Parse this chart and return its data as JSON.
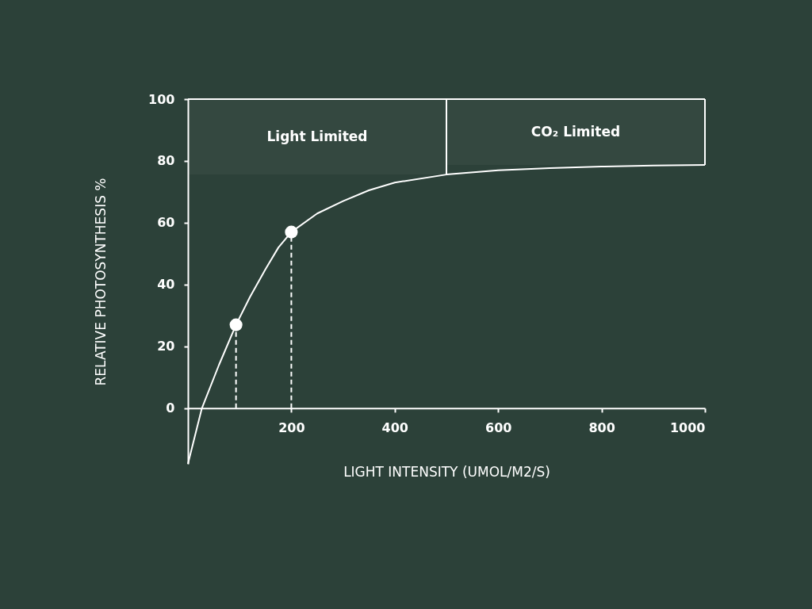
{
  "chart_data": {
    "type": "line",
    "xlabel": "LIGHT INTENSITY (UMOL/M2/S)",
    "ylabel": "RELATIVE PHOTOSYNTHESIS %",
    "xlim": [
      0,
      1000
    ],
    "ylim": [
      -18,
      100
    ],
    "xticks": [
      200,
      400,
      600,
      800,
      1000
    ],
    "yticks": [
      0,
      20,
      40,
      60,
      80,
      100
    ],
    "series": [
      {
        "color": "#ffffff",
        "x": [
          0,
          27,
          60,
          93,
          120,
          150,
          175,
          200,
          250,
          300,
          350,
          400,
          500,
          600,
          700,
          800,
          900,
          1000
        ],
        "values": [
          -18,
          0,
          14,
          27,
          36,
          45,
          52,
          57,
          63,
          67,
          70.5,
          73,
          75.6,
          77,
          77.7,
          78.2,
          78.5,
          78.7
        ]
      },
      {
        "type": "scatter",
        "color": "#ffffff",
        "marker": "circle",
        "line_style": "dashed",
        "x": [
          93,
          200
        ],
        "values": [
          27,
          57
        ],
        "errors": [
          [
            0,
            27
          ],
          [
            0,
            57
          ]
        ]
      }
    ],
    "ref_lines": [
      {
        "axis": "x",
        "value": 500
      },
      {
        "axis": "x",
        "value": 1000
      }
    ],
    "bands": [
      {
        "axis": "x",
        "from": 0,
        "to": 500,
        "label": "Light Limited"
      },
      {
        "axis": "x",
        "from": 500,
        "to": 1000,
        "label": "CO₂ Limited"
      }
    ]
  }
}
